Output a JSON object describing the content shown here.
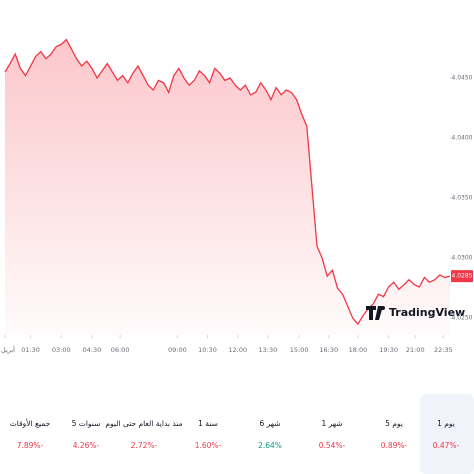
{
  "chart_data": {
    "type": "line",
    "color": "#f23645",
    "values": [
      4.0455,
      4.0462,
      4.047,
      4.0458,
      4.0452,
      4.046,
      4.0468,
      4.0472,
      4.0466,
      4.047,
      4.0476,
      4.0478,
      4.0482,
      4.0474,
      4.0466,
      4.046,
      4.0464,
      4.0458,
      4.045,
      4.0456,
      4.0462,
      4.0455,
      4.0448,
      4.0452,
      4.0446,
      4.0454,
      4.046,
      4.0452,
      4.0444,
      4.044,
      4.0448,
      4.0446,
      4.0438,
      4.0452,
      4.0458,
      4.045,
      4.0444,
      4.0448,
      4.0456,
      4.0452,
      4.0446,
      4.0458,
      4.0454,
      4.0448,
      4.045,
      4.0444,
      4.044,
      4.0444,
      4.0436,
      4.0438,
      4.0446,
      4.044,
      4.0432,
      4.0442,
      4.0436,
      4.044,
      4.0438,
      4.0432,
      4.042,
      4.041,
      4.036,
      4.031,
      4.03,
      4.0285,
      4.029,
      4.0275,
      4.027,
      4.026,
      4.025,
      4.0245,
      4.0252,
      4.0258,
      4.0262,
      4.027,
      4.0268,
      4.0276,
      4.028,
      4.0274,
      4.0278,
      4.0282,
      4.0278,
      4.0276,
      4.0284,
      4.028,
      4.0282,
      4.0286,
      4.0284,
      4.0285
    ],
    "xlim": [
      0,
      87
    ],
    "xticks": [
      {
        "value": 0,
        "label": "أبريل"
      },
      {
        "value": 5,
        "label": "01:30"
      },
      {
        "value": 11,
        "label": "03:00"
      },
      {
        "value": 17,
        "label": "04:30"
      },
      {
        "value": 22.5,
        "label": "06:00"
      },
      {
        "value": 33.7,
        "label": "09:00"
      },
      {
        "value": 39.6,
        "label": "10:30"
      },
      {
        "value": 45.5,
        "label": "12:00"
      },
      {
        "value": 51.4,
        "label": "13:30"
      },
      {
        "value": 57.5,
        "label": "15:00"
      },
      {
        "value": 63.3,
        "label": "16:30"
      },
      {
        "value": 69,
        "label": "18:00"
      },
      {
        "value": 75,
        "label": "19:30"
      },
      {
        "value": 80.2,
        "label": "21:00"
      },
      {
        "value": 85.7,
        "label": "22:35"
      }
    ],
    "ylim": [
      4.0236,
      4.049
    ],
    "yticks": [
      {
        "value": 4.045,
        "label": "4.0450"
      },
      {
        "value": 4.04,
        "label": "4.0400"
      },
      {
        "value": 4.035,
        "label": "4.0350"
      },
      {
        "value": 4.03,
        "label": "4.0300"
      },
      {
        "value": 4.025,
        "label": "4.0250"
      }
    ],
    "watermark": "TradingView"
  },
  "periods": [
    {
      "label": "1 يوم",
      "change": "0.47%-",
      "color": "#f23645"
    },
    {
      "label": "5 يوم",
      "change": "0.89%-",
      "color": "#f23645"
    },
    {
      "label": "1 شهر",
      "change": "0.54%-",
      "color": "#f23645"
    },
    {
      "label": "6 شهر",
      "change": "2.64%",
      "color": "#089981"
    },
    {
      "label": "1 سنة",
      "change": "1.60%-",
      "color": "#f23645"
    },
    {
      "label": "منذ بداية العام حتى اليوم",
      "change": "2.72%-",
      "color": "#f23645"
    },
    {
      "label": "5 سنوات",
      "change": "4.26%-",
      "color": "#f23645"
    },
    {
      "label": "جميع الأوقات",
      "change": "7.89%-",
      "color": "#f23645"
    }
  ]
}
